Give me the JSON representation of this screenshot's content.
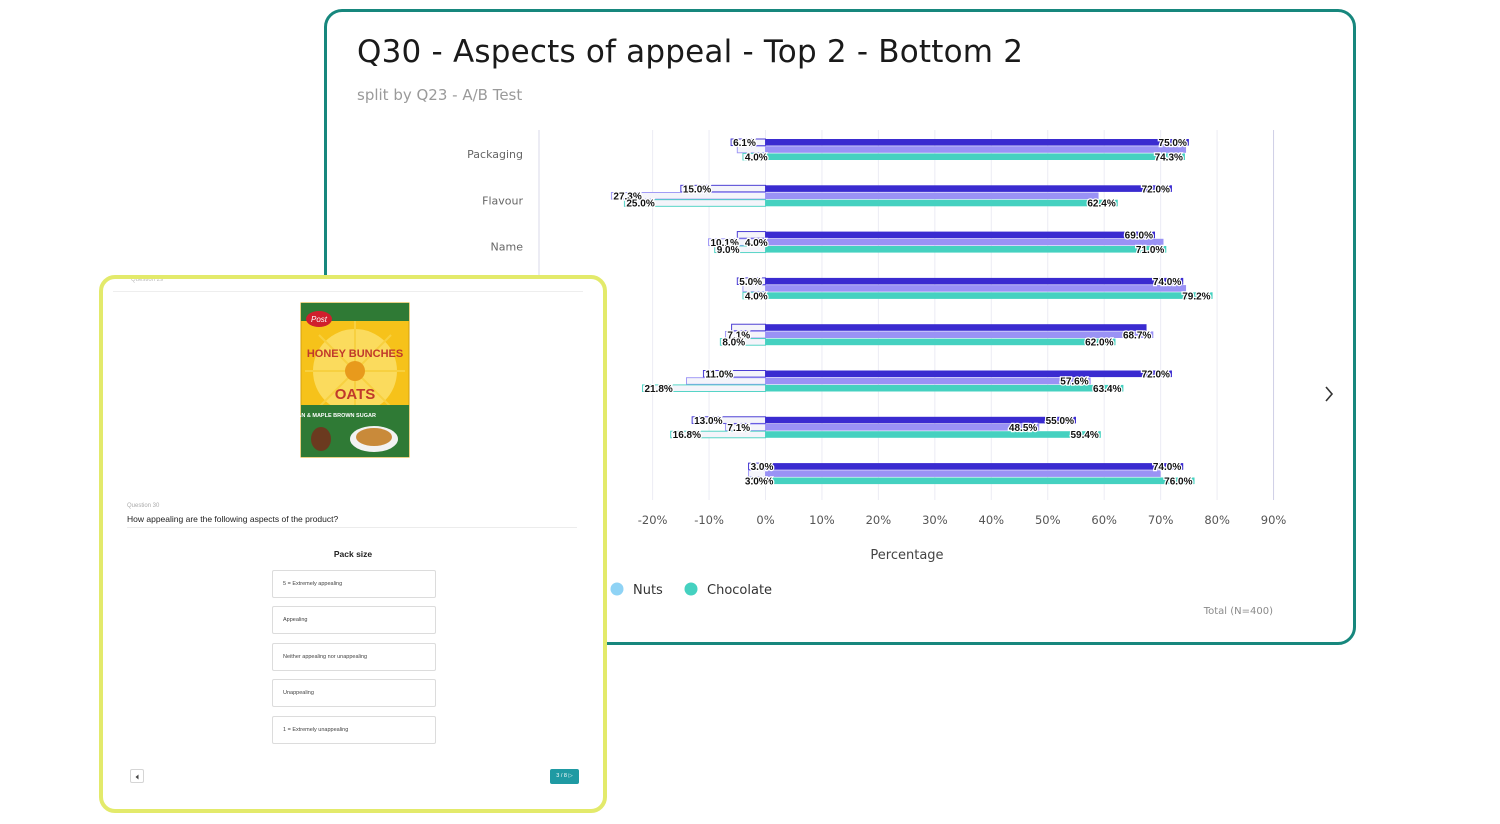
{
  "chart_data": {
    "type": "bar",
    "title": "Q30 - Aspects of appeal - Top 2 - Bottom 2",
    "subtitle": "split by Q23 - A/B Test",
    "xlabel": "Percentage",
    "xlim": [
      -30,
      90
    ],
    "xticks": [
      "-20%",
      "-10%",
      "0%",
      "10%",
      "20%",
      "30%",
      "40%",
      "50%",
      "60%",
      "70%",
      "80%",
      "90%"
    ],
    "xtick_values": [
      -20,
      -10,
      0,
      10,
      20,
      30,
      40,
      50,
      60,
      70,
      80,
      90
    ],
    "categories": [
      "Packaging",
      "Flavour",
      "Name",
      "",
      "",
      "",
      "",
      ""
    ],
    "series": [
      {
        "name": "",
        "color": "#3a2bd0",
        "top2": [
          75.0,
          72.0,
          69.0,
          74.0,
          67.5,
          72.0,
          55.0,
          74.0
        ],
        "bottom2": [
          6.1,
          15.0,
          5.0,
          5.0,
          6.0,
          11.0,
          13.0,
          3.0
        ]
      },
      {
        "name": "Nuts",
        "color": "#9a92f5",
        "top2": [
          74.5,
          59.0,
          70.5,
          74.5,
          68.7,
          57.6,
          48.5,
          70.0
        ],
        "bottom2": [
          5.0,
          27.3,
          10.1,
          4.0,
          7.1,
          14.0,
          7.1,
          3.0
        ]
      },
      {
        "name": "Chocolate",
        "color": "#45d1c0",
        "top2": [
          74.3,
          62.4,
          71.0,
          79.2,
          62.0,
          63.4,
          59.4,
          76.0
        ],
        "bottom2": [
          4.0,
          25.0,
          9.0,
          4.0,
          8.0,
          21.8,
          16.8,
          3.0
        ]
      }
    ],
    "data_labels": [
      [
        [
          "75.0%",
          "6.1%"
        ],
        [
          "",
          ""
        ],
        [
          "74.3%",
          "4.0%"
        ]
      ],
      [
        [
          "72.0%",
          "15.0%"
        ],
        [
          "",
          "27.3%"
        ],
        [
          "62.4%",
          "25.0%"
        ]
      ],
      [
        [
          "69.0%",
          ""
        ],
        [
          "",
          "10.1%"
        ],
        [
          "71.0%",
          "9.0%"
        ]
      ],
      [
        [
          "74.0%",
          "5.0%"
        ],
        [
          "",
          ""
        ],
        [
          "79.2%",
          "4.0%"
        ]
      ],
      [
        [
          "",
          ""
        ],
        [
          "68.7%",
          "7.1%"
        ],
        [
          "62.0%",
          "8.0%"
        ]
      ],
      [
        [
          "72.0%",
          "11.0%"
        ],
        [
          "57.6%",
          ""
        ],
        [
          "63.4%",
          "21.8%"
        ]
      ],
      [
        [
          "55.0%",
          "13.0%"
        ],
        [
          "48.5%",
          "7.1%"
        ],
        [
          "59.4%",
          "16.8%"
        ]
      ],
      [
        [
          "74.0%",
          "3.0%"
        ],
        [
          "",
          ""
        ],
        [
          "76.0%",
          "3.0%"
        ]
      ]
    ],
    "extra_labels": [
      {
        "row": 2,
        "series": 1,
        "text": "4.0%"
      },
      {
        "row": 7,
        "series": 2,
        "text": "3.0%"
      }
    ],
    "legend": [
      "Nuts",
      "Chocolate"
    ],
    "legend_position": "bottom-left",
    "footnote": "Total (N=400)",
    "grid": true
  },
  "survey": {
    "top_number": "Question 29",
    "question_number": "Question 30",
    "question_text": "How appealing are the following aspects of the product?",
    "aspect": "Pack size",
    "options": [
      "5 = Extremely appealing",
      "Appealing",
      "Neither appealing nor unappealing",
      "Unappealing",
      "1 = Extremely unappealing"
    ],
    "page_indicator": "3 / 8",
    "product": {
      "brand": "Post",
      "name_line1": "HONEY BUNCHES",
      "name_line2": "OATS",
      "variety": "PECAN & MAPLE BROWN SUGAR",
      "box_color": "#f6c21a",
      "accent_color": "#2f7a35"
    }
  }
}
